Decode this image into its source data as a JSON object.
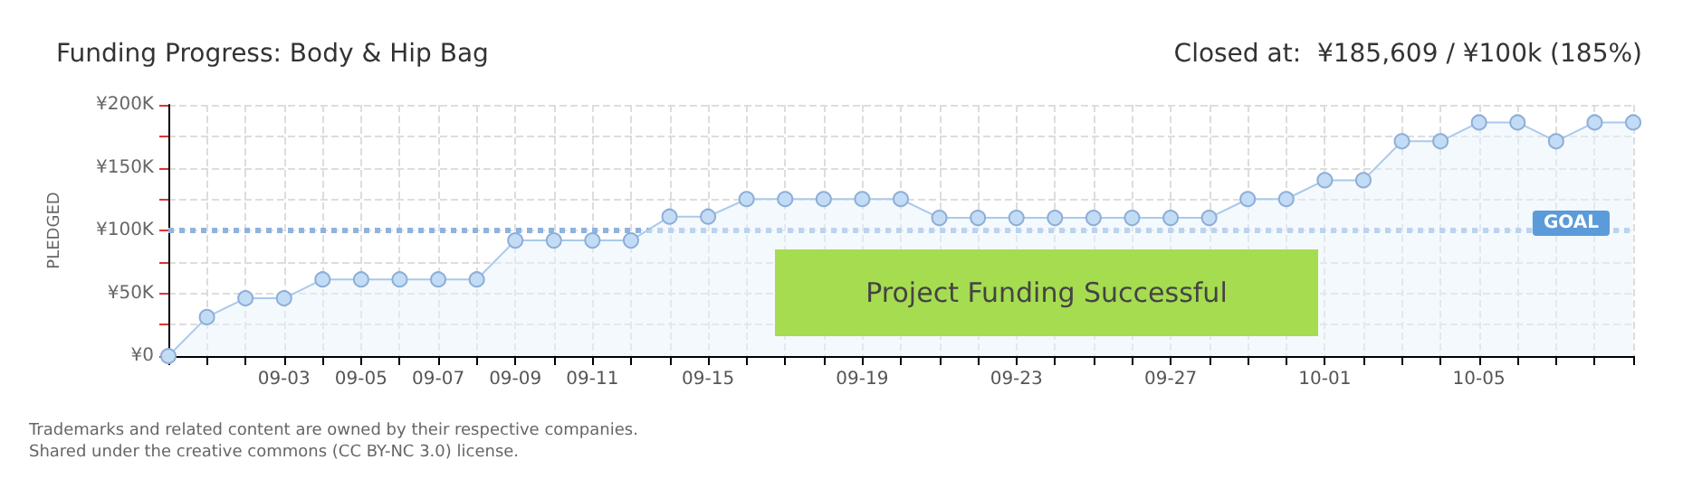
{
  "chart_data": {
    "type": "area",
    "title": "Funding Progress: Body & Hip Bag",
    "subtitle": "Closed at:  ¥185,609 / ¥100k (185%)",
    "ylabel": "PLEDGED",
    "categories": [
      null,
      null,
      null,
      "09-03",
      null,
      "09-05",
      null,
      "09-07",
      null,
      "09-09",
      null,
      "09-11",
      null,
      null,
      "09-15",
      null,
      null,
      null,
      "09-19",
      null,
      null,
      null,
      "09-23",
      null,
      null,
      null,
      "09-27",
      null,
      null,
      null,
      "10-01",
      null,
      null,
      null,
      "10-05",
      null,
      null,
      null,
      null
    ],
    "series": [
      {
        "color": "#a9c9ec",
        "values": [
          0,
          31,
          46,
          46,
          61,
          61,
          61,
          61,
          61,
          92,
          92,
          92,
          92,
          111,
          111,
          125,
          125,
          125,
          125,
          125,
          110,
          110,
          110,
          110,
          110,
          110,
          110,
          110,
          125,
          125,
          140,
          140,
          171,
          171,
          186,
          186,
          171,
          186,
          186
        ]
      }
    ],
    "ylim": [
      0,
      200
    ],
    "yticks": [
      {
        "value": 0,
        "label": "¥0"
      },
      {
        "value": 25,
        "label": null
      },
      {
        "value": 50,
        "label": "¥50K"
      },
      {
        "value": 75,
        "label": null
      },
      {
        "value": 100,
        "label": "¥100K"
      },
      {
        "value": 125,
        "label": null
      },
      {
        "value": 150,
        "label": "¥150K"
      },
      {
        "value": 175,
        "label": null
      },
      {
        "value": 200,
        "label": "¥200K"
      }
    ],
    "ref_lines": [
      {
        "axis": "y",
        "value": 100,
        "label": "GOAL",
        "color": "#8fb3df",
        "line_style": "dotted"
      }
    ],
    "annotations": [
      "Project Funding Successful",
      "Trademarks and related content are owned by their respective companies.",
      "Shared under the creative commons (CC BY-NC 3.0) license."
    ],
    "grid": true,
    "marker": "circle",
    "line_style": "solid"
  }
}
